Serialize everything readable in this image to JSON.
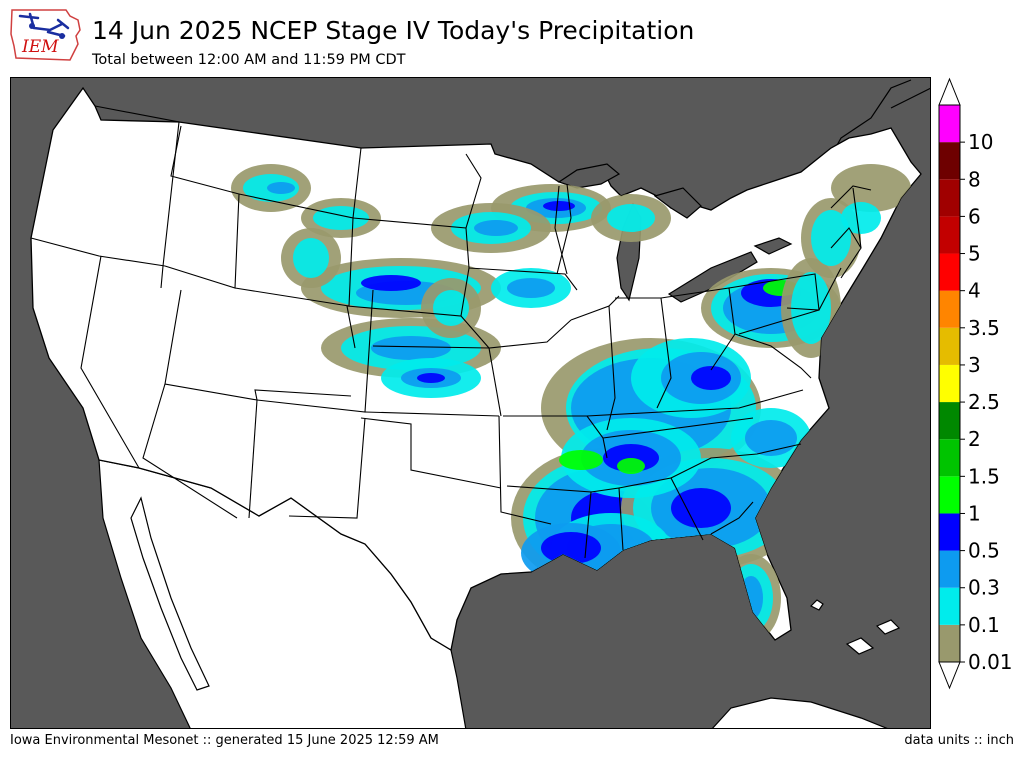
{
  "header": {
    "logo_text": "IEM",
    "title": "14 Jun 2025 NCEP Stage IV Today's Precipitation",
    "subtitle": "Total between 12:00 AM and 11:59 PM CDT"
  },
  "footer": {
    "left": "Iowa Environmental Mesonet :: generated 15 June 2025 12:59 AM",
    "right": "data units :: inch"
  },
  "colorbar": {
    "levels": [
      "0.01",
      "0.1",
      "0.3",
      "0.5",
      "1",
      "1.5",
      "2",
      "2.5",
      "3",
      "3.5",
      "4",
      "5",
      "6",
      "8",
      "10"
    ],
    "colors": [
      "#99996d",
      "#00ecec",
      "#0d9bf0",
      "#0000ff",
      "#00ff00",
      "#00c400",
      "#008800",
      "#ffff00",
      "#e5bc00",
      "#ff8500",
      "#ff0000",
      "#c20000",
      "#a00000",
      "#6e0000",
      "#ff00ff"
    ],
    "extend": "both"
  },
  "map": {
    "background_color": "#595959",
    "land_color": "#ffffff",
    "boundary_color": "#000000"
  }
}
